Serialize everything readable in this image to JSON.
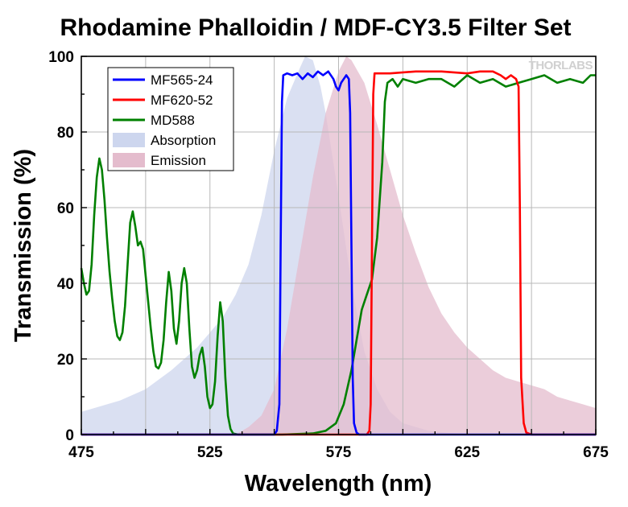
{
  "chart_data": {
    "type": "line",
    "title": "Rhodamine Phalloidin / MDF-CY3.5 Filter Set",
    "xlabel": "Wavelength (nm)",
    "ylabel": "Transmission (%)",
    "xlim": [
      475,
      675
    ],
    "ylim": [
      0,
      100
    ],
    "xticks": [
      475,
      525,
      575,
      625,
      675
    ],
    "yticks": [
      0,
      20,
      40,
      60,
      80,
      100
    ],
    "grid": true,
    "legend_position": "top-left",
    "watermark": "THORLABS",
    "series": [
      {
        "name": "MF565-24",
        "kind": "line",
        "color": "#0000ff",
        "points": [
          [
            475,
            0
          ],
          [
            550,
            0
          ],
          [
            551,
            1
          ],
          [
            552,
            8
          ],
          [
            552.5,
            50
          ],
          [
            553,
            88
          ],
          [
            553.5,
            95
          ],
          [
            555,
            95.5
          ],
          [
            557,
            95
          ],
          [
            559,
            95.5
          ],
          [
            561,
            94
          ],
          [
            563,
            95.5
          ],
          [
            565,
            94.5
          ],
          [
            567,
            96
          ],
          [
            569,
            95
          ],
          [
            571,
            96
          ],
          [
            573,
            94
          ],
          [
            574,
            92
          ],
          [
            575,
            91
          ],
          [
            576,
            93
          ],
          [
            577,
            94
          ],
          [
            578,
            95
          ],
          [
            579,
            94
          ],
          [
            579.5,
            85
          ],
          [
            580,
            50
          ],
          [
            580.5,
            15
          ],
          [
            581,
            3
          ],
          [
            582,
            0.5
          ],
          [
            583,
            0
          ],
          [
            675,
            0
          ]
        ]
      },
      {
        "name": "MF620-52",
        "kind": "line",
        "color": "#ff0000",
        "points": [
          [
            475,
            0
          ],
          [
            586,
            0
          ],
          [
            587,
            1
          ],
          [
            587.5,
            8
          ],
          [
            588,
            50
          ],
          [
            588.5,
            90
          ],
          [
            589,
            95.5
          ],
          [
            595,
            95.5
          ],
          [
            605,
            96
          ],
          [
            615,
            96
          ],
          [
            625,
            95.5
          ],
          [
            630,
            96
          ],
          [
            635,
            96
          ],
          [
            638,
            95
          ],
          [
            640,
            94
          ],
          [
            642,
            95
          ],
          [
            644,
            94
          ],
          [
            645,
            92
          ],
          [
            645.5,
            60
          ],
          [
            646,
            15
          ],
          [
            647,
            3
          ],
          [
            648,
            0.5
          ],
          [
            650,
            0
          ],
          [
            675,
            0
          ]
        ]
      },
      {
        "name": "MD588",
        "kind": "line",
        "color": "#008000",
        "points": [
          [
            475,
            44
          ],
          [
            476,
            40
          ],
          [
            477,
            37
          ],
          [
            478,
            38
          ],
          [
            479,
            45
          ],
          [
            480,
            58
          ],
          [
            481,
            68
          ],
          [
            482,
            73
          ],
          [
            483,
            70
          ],
          [
            484,
            62
          ],
          [
            485,
            52
          ],
          [
            486,
            43
          ],
          [
            487,
            36
          ],
          [
            488,
            30
          ],
          [
            489,
            26
          ],
          [
            490,
            25
          ],
          [
            491,
            27
          ],
          [
            492,
            34
          ],
          [
            493,
            45
          ],
          [
            494,
            56
          ],
          [
            495,
            59
          ],
          [
            496,
            55
          ],
          [
            497,
            50
          ],
          [
            498,
            51
          ],
          [
            499,
            49
          ],
          [
            500,
            42
          ],
          [
            501,
            35
          ],
          [
            502,
            28
          ],
          [
            503,
            22
          ],
          [
            504,
            18
          ],
          [
            505,
            17.5
          ],
          [
            506,
            19
          ],
          [
            507,
            25
          ],
          [
            508,
            35
          ],
          [
            509,
            43
          ],
          [
            510,
            38
          ],
          [
            511,
            28
          ],
          [
            512,
            24
          ],
          [
            513,
            30
          ],
          [
            514,
            40
          ],
          [
            515,
            44
          ],
          [
            516,
            40
          ],
          [
            517,
            28
          ],
          [
            518,
            18
          ],
          [
            519,
            15
          ],
          [
            520,
            17
          ],
          [
            521,
            21
          ],
          [
            522,
            23
          ],
          [
            523,
            18
          ],
          [
            524,
            10
          ],
          [
            525,
            7
          ],
          [
            526,
            8
          ],
          [
            527,
            14
          ],
          [
            528,
            26
          ],
          [
            529,
            35
          ],
          [
            530,
            30
          ],
          [
            531,
            15
          ],
          [
            532,
            5
          ],
          [
            533,
            1.5
          ],
          [
            534,
            0.3
          ],
          [
            536,
            0
          ],
          [
            553,
            0
          ],
          [
            565,
            0.3
          ],
          [
            570,
            1
          ],
          [
            574,
            3
          ],
          [
            577,
            8
          ],
          [
            580,
            17
          ],
          [
            582,
            25
          ],
          [
            584,
            33
          ],
          [
            586,
            37
          ],
          [
            588,
            41
          ],
          [
            590,
            52
          ],
          [
            592,
            72
          ],
          [
            593,
            88
          ],
          [
            594,
            93
          ],
          [
            596,
            94
          ],
          [
            598,
            92
          ],
          [
            600,
            94
          ],
          [
            605,
            93
          ],
          [
            610,
            94
          ],
          [
            615,
            94
          ],
          [
            620,
            92
          ],
          [
            625,
            95
          ],
          [
            630,
            93
          ],
          [
            635,
            94
          ],
          [
            640,
            92
          ],
          [
            645,
            93
          ],
          [
            650,
            94
          ],
          [
            655,
            95
          ],
          [
            660,
            93
          ],
          [
            665,
            94
          ],
          [
            670,
            93
          ],
          [
            673,
            95
          ],
          [
            675,
            95
          ]
        ]
      },
      {
        "name": "Absorption",
        "kind": "area",
        "color": "#cdd6ee",
        "points": [
          [
            475,
            6
          ],
          [
            490,
            9
          ],
          [
            500,
            12
          ],
          [
            510,
            17
          ],
          [
            520,
            23
          ],
          [
            525,
            27
          ],
          [
            530,
            31
          ],
          [
            535,
            37
          ],
          [
            540,
            45
          ],
          [
            545,
            58
          ],
          [
            550,
            75
          ],
          [
            555,
            89
          ],
          [
            560,
            97
          ],
          [
            562,
            100
          ],
          [
            565,
            99
          ],
          [
            568,
            92
          ],
          [
            570,
            85
          ],
          [
            575,
            63
          ],
          [
            580,
            40
          ],
          [
            585,
            22
          ],
          [
            590,
            12
          ],
          [
            595,
            6
          ],
          [
            600,
            3
          ],
          [
            610,
            1
          ],
          [
            620,
            0.3
          ],
          [
            630,
            0
          ]
        ]
      },
      {
        "name": "Emission",
        "kind": "area",
        "color": "#e4bccd",
        "points": [
          [
            535,
            0
          ],
          [
            540,
            2
          ],
          [
            545,
            5
          ],
          [
            550,
            12
          ],
          [
            555,
            28
          ],
          [
            560,
            48
          ],
          [
            565,
            68
          ],
          [
            570,
            85
          ],
          [
            575,
            96
          ],
          [
            578,
            100
          ],
          [
            580,
            99
          ],
          [
            585,
            93
          ],
          [
            590,
            82
          ],
          [
            595,
            70
          ],
          [
            600,
            58
          ],
          [
            605,
            48
          ],
          [
            610,
            39
          ],
          [
            615,
            32
          ],
          [
            620,
            27
          ],
          [
            625,
            23
          ],
          [
            630,
            20
          ],
          [
            635,
            17
          ],
          [
            640,
            15
          ],
          [
            645,
            14
          ],
          [
            650,
            13
          ],
          [
            655,
            12
          ],
          [
            660,
            10
          ],
          [
            665,
            9
          ],
          [
            670,
            8
          ],
          [
            675,
            7
          ]
        ]
      }
    ]
  }
}
